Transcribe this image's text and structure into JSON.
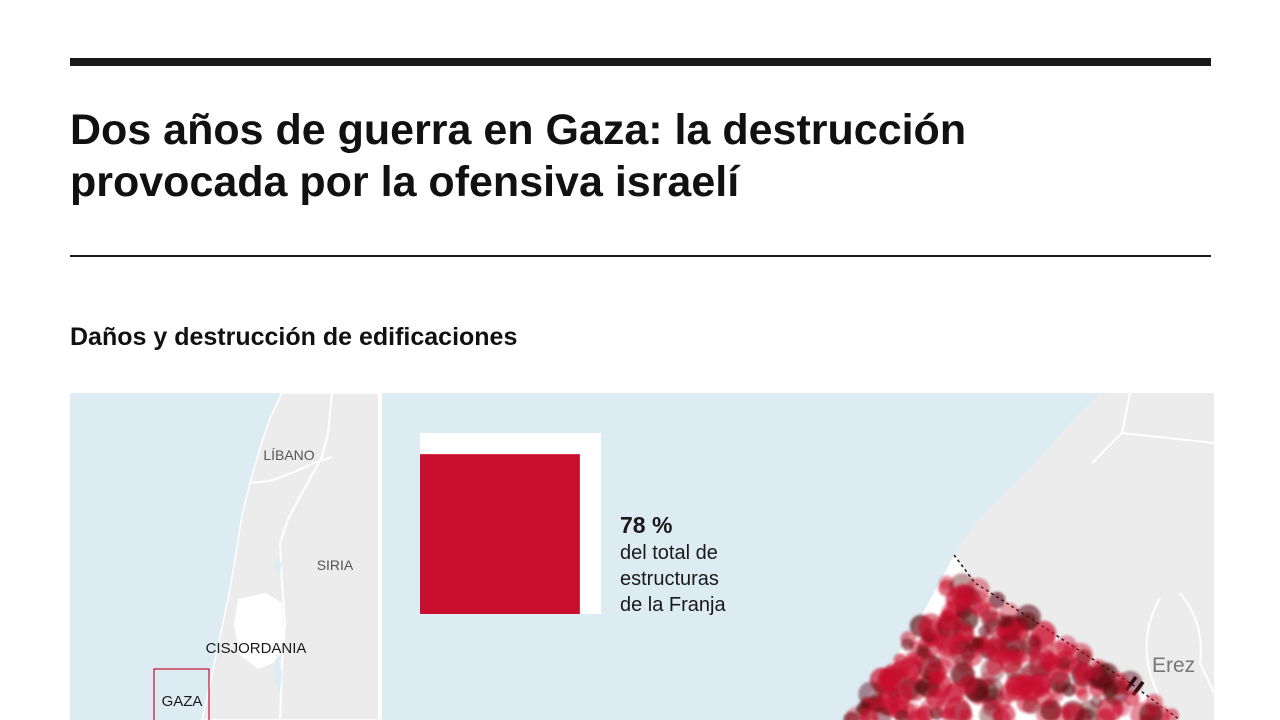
{
  "headline": "Dos años de guerra en Gaza: la destrucción provocada por la ofensiva israelí",
  "section_title": "Daños y destrucción de edificaciones",
  "locator_map": {
    "labels": {
      "lebanon": "LÍBANO",
      "syria": "SIRIA",
      "west_bank": "CISJORDANIA",
      "gaza": "GAZA"
    }
  },
  "main_map": {
    "place_label": "Erez"
  },
  "stat": {
    "value": "78 %",
    "description_lines": [
      "del total de",
      "estructuras",
      "de la Franja"
    ],
    "value_fraction": 0.78
  },
  "colors": {
    "sea": "#ddebf3",
    "land": "#ececec",
    "damage": "#c8102e",
    "damage_dark": "#5a0a0f",
    "text": "#111111"
  }
}
